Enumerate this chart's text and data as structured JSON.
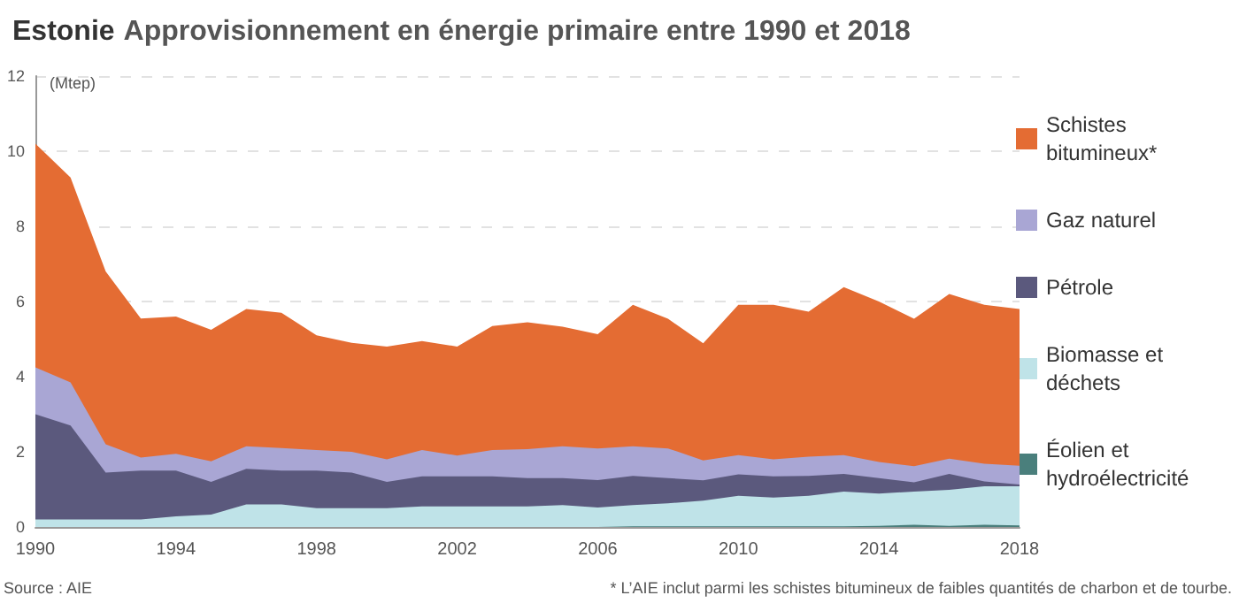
{
  "chart_data": {
    "type": "area",
    "stacked": true,
    "title": "Estonie Approvisionnement en énergie primaire entre 1990 et 2018",
    "ylabel": "(Mtep)",
    "x": [
      1990,
      1991,
      1992,
      1993,
      1994,
      1995,
      1996,
      1997,
      1998,
      1999,
      2000,
      2001,
      2002,
      2003,
      2004,
      2005,
      2006,
      2007,
      2008,
      2009,
      2010,
      2011,
      2012,
      2013,
      2014,
      2015,
      2016,
      2017,
      2018
    ],
    "series": [
      {
        "name": "Éolien et hydroélectricité",
        "color": "#4a7f7c",
        "values": [
          0,
          0,
          0,
          0,
          0,
          0,
          0,
          0,
          0,
          0,
          0,
          0,
          0,
          0,
          0,
          0,
          0,
          0.02,
          0.02,
          0.02,
          0.02,
          0.02,
          0.02,
          0.02,
          0.03,
          0.06,
          0.03,
          0.06,
          0.04
        ]
      },
      {
        "name": "Biomasse et déchets",
        "color": "#bfe3e8",
        "values": [
          0.2,
          0.2,
          0.2,
          0.2,
          0.28,
          0.33,
          0.6,
          0.6,
          0.5,
          0.5,
          0.5,
          0.55,
          0.55,
          0.55,
          0.55,
          0.58,
          0.52,
          0.56,
          0.61,
          0.68,
          0.81,
          0.76,
          0.81,
          0.92,
          0.86,
          0.88,
          0.96,
          1.02,
          1.04
        ]
      },
      {
        "name": "Pétrole",
        "color": "#5b597d",
        "values": [
          2.8,
          2.5,
          1.25,
          1.3,
          1.22,
          0.87,
          0.95,
          0.9,
          1.0,
          0.95,
          0.7,
          0.8,
          0.8,
          0.8,
          0.75,
          0.72,
          0.73,
          0.78,
          0.67,
          0.54,
          0.57,
          0.57,
          0.53,
          0.47,
          0.41,
          0.25,
          0.42,
          0.13,
          0.05
        ]
      },
      {
        "name": "Gaz naturel",
        "color": "#a9a6d4",
        "values": [
          1.25,
          1.15,
          0.75,
          0.35,
          0.45,
          0.55,
          0.6,
          0.6,
          0.55,
          0.55,
          0.6,
          0.7,
          0.55,
          0.7,
          0.77,
          0.85,
          0.84,
          0.79,
          0.79,
          0.53,
          0.51,
          0.45,
          0.51,
          0.5,
          0.43,
          0.43,
          0.41,
          0.47,
          0.5
        ]
      },
      {
        "name": "Schistes bitumineux*",
        "color": "#e46c33",
        "values": [
          5.95,
          5.45,
          4.6,
          3.7,
          3.65,
          3.5,
          3.65,
          3.6,
          3.05,
          2.9,
          3.0,
          2.9,
          2.9,
          3.3,
          3.38,
          3.18,
          3.04,
          3.76,
          3.45,
          3.12,
          4.0,
          4.11,
          3.86,
          4.47,
          4.27,
          3.92,
          4.38,
          4.23,
          4.17
        ]
      }
    ],
    "xlim": [
      1990,
      2018
    ],
    "xticks": [
      1990,
      1994,
      1998,
      2002,
      2006,
      2010,
      2014,
      2018
    ],
    "ylim": [
      0,
      12
    ],
    "yticks": [
      0,
      2,
      4,
      6,
      8,
      10,
      12
    ],
    "grid": "y",
    "legend": "right",
    "marker": "none",
    "annotations": [
      "Source : AIE",
      "* L’AIE inclut parmi les schistes bitumineux de faibles quantités de charbon et de tourbe."
    ]
  }
}
